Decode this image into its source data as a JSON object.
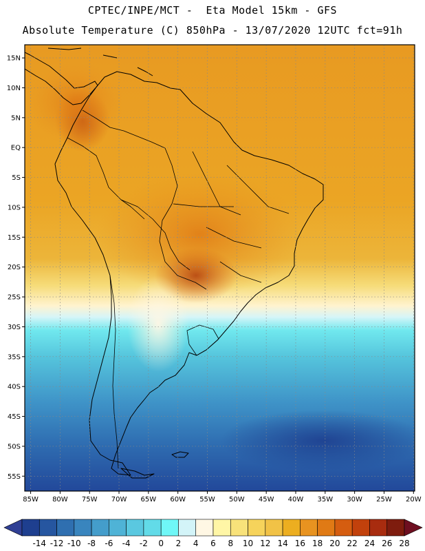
{
  "header": {
    "line1": "CPTEC/INPE/MCT -  Eta Model 15km - GFS",
    "line2": "Absolute Temperature (C) 850hPa - 13/07/2020 12UTC fct=91h"
  },
  "map": {
    "lat_labels": [
      "15N",
      "10N",
      "5N",
      "EQ",
      "5S",
      "10S",
      "15S",
      "20S",
      "25S",
      "30S",
      "35S",
      "40S",
      "45S",
      "50S",
      "55S"
    ],
    "lat_values": [
      15,
      10,
      5,
      0,
      -5,
      -10,
      -15,
      -20,
      -25,
      -30,
      -35,
      -40,
      -45,
      -50,
      -55
    ],
    "lon_labels": [
      "85W",
      "80W",
      "75W",
      "70W",
      "65W",
      "60W",
      "55W",
      "50W",
      "45W",
      "40W",
      "35W",
      "30W",
      "25W",
      "20W"
    ],
    "lon_values": [
      -85,
      -80,
      -75,
      -70,
      -65,
      -60,
      -55,
      -50,
      -45,
      -40,
      -35,
      -30,
      -25,
      -20
    ],
    "lat_range": [
      -57.5,
      17.2
    ],
    "lon_range": [
      -86,
      -19.8
    ]
  },
  "colorbar": {
    "labels": [
      "-14",
      "-12",
      "-10",
      "-8",
      "-6",
      "-4",
      "-2",
      "0",
      "2",
      "4",
      "6",
      "8",
      "10",
      "12",
      "14",
      "16",
      "18",
      "20",
      "22",
      "24",
      "26",
      "28"
    ],
    "colors": [
      "#1e3f8f",
      "#2656a0",
      "#2f6fb0",
      "#3985be",
      "#449dcb",
      "#4fb3d6",
      "#5ac8e0",
      "#62dbe8",
      "#6ff7f7",
      "#d3f4f8",
      "#fff7e4",
      "#fff6a6",
      "#f8e27a",
      "#f6d35b",
      "#f1c246",
      "#ecae20",
      "#e89320",
      "#e07a15",
      "#d55d10",
      "#c2410c",
      "#a82c0f",
      "#7e1c0e"
    ],
    "under_color": "#2f3f94",
    "over_color": "#6e0f20"
  }
}
